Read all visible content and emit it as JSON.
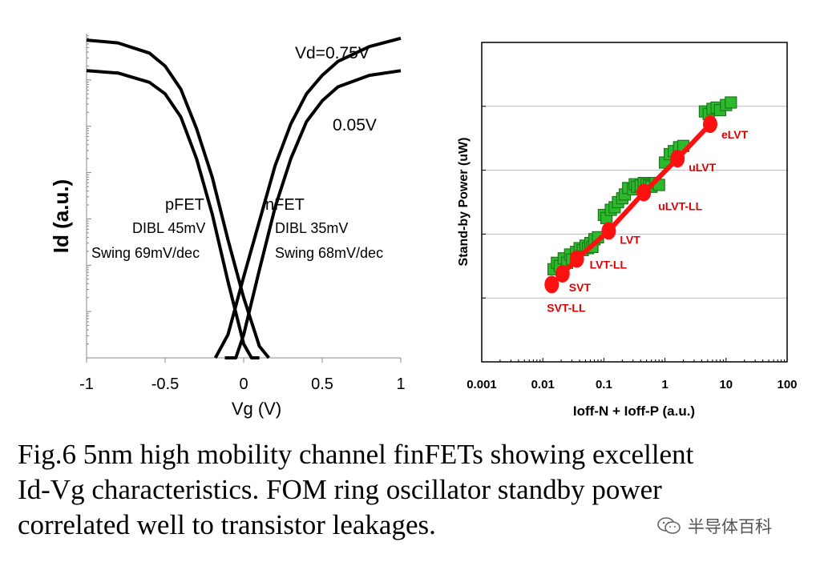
{
  "chart_data": [
    {
      "type": "line",
      "title": "",
      "xlabel": "Vg (V)",
      "ylabel": "Id (a.u.)",
      "x_scale": "linear",
      "y_scale": "log",
      "xlim": [
        -1,
        1
      ],
      "ylim_decades": [
        0,
        7
      ],
      "xticks": [
        -1,
        -0.5,
        0,
        0.5,
        1
      ],
      "xtick_labels": [
        "-1",
        "-0.5",
        "0",
        "0.5",
        "1"
      ],
      "grid": false,
      "annotations": {
        "vd_high": "Vd=0.75V",
        "vd_low": "0.05V",
        "pfet_name": "pFET",
        "pfet_dibl": "DIBL 45mV",
        "pfet_swing": "Swing 69mV/dec",
        "nfet_name": "nFET",
        "nfet_dibl": "DIBL 35mV",
        "nfet_swing": "Swing 68mV/dec"
      },
      "series": [
        {
          "device": "pFET",
          "vd": "0.75V",
          "x": [
            -1,
            -0.8,
            -0.6,
            -0.5,
            -0.4,
            -0.3,
            -0.2,
            -0.1,
            0,
            0.1,
            0.16
          ],
          "log10_id": [
            6.86,
            6.8,
            6.58,
            6.3,
            5.8,
            4.95,
            3.9,
            2.55,
            1.3,
            0.25,
            -0.45
          ]
        },
        {
          "device": "pFET",
          "vd": "0.05V",
          "x": [
            -1,
            -0.8,
            -0.6,
            -0.5,
            -0.4,
            -0.3,
            -0.2,
            -0.1,
            0,
            0.05,
            0.1
          ],
          "log10_id": [
            6.2,
            6.15,
            5.95,
            5.7,
            5.2,
            4.3,
            3.1,
            1.65,
            0.3,
            -0.4,
            -1.0
          ]
        },
        {
          "device": "nFET",
          "vd": "0.75V",
          "x": [
            -0.18,
            -0.1,
            0,
            0.1,
            0.2,
            0.3,
            0.4,
            0.5,
            0.6,
            0.8,
            1
          ],
          "log10_id": [
            -0.45,
            0.5,
            1.75,
            2.95,
            4.15,
            5.05,
            5.7,
            6.1,
            6.4,
            6.72,
            6.9
          ]
        },
        {
          "device": "nFET",
          "vd": "0.05V",
          "x": [
            -0.12,
            -0.05,
            0,
            0.1,
            0.2,
            0.3,
            0.4,
            0.5,
            0.6,
            0.8,
            1
          ],
          "log10_id": [
            -1.0,
            -0.2,
            0.5,
            1.9,
            3.25,
            4.3,
            5.1,
            5.55,
            5.85,
            6.1,
            6.2
          ]
        }
      ]
    },
    {
      "type": "scatter",
      "title": "",
      "xlabel": "Ioff-N +  Ioff-P (a.u.)",
      "ylabel": "Stand-by Power   (uW)",
      "x_scale": "log",
      "xlim": [
        0.001,
        100
      ],
      "xticks": [
        0.001,
        0.01,
        0.1,
        1,
        10,
        100
      ],
      "xtick_labels": [
        "0.001",
        "0.01",
        "0.1",
        "1",
        "10",
        "100"
      ],
      "y_scale": "log",
      "ylim_decades": [
        0,
        5
      ],
      "yticks_labeled": false,
      "grid": true,
      "colors": {
        "measured": "#2eb82e",
        "measured_edge": "#1a7a1a",
        "fit": "#ff1010",
        "labels": "#e00000"
      },
      "series": [
        {
          "name": "",
          "style": "red-line-markers",
          "points": [
            {
              "label": "SVT-LL",
              "x": 0.014,
              "y": 1.21
            },
            {
              "label": "SVT",
              "x": 0.021,
              "y": 1.38
            },
            {
              "label": "LVT-LL",
              "x": 0.036,
              "y": 1.61
            },
            {
              "label": "LVT",
              "x": 0.12,
              "y": 2.05
            },
            {
              "label": "uLVT-LL",
              "x": 0.45,
              "y": 2.65
            },
            {
              "label": "uLVT",
              "x": 1.6,
              "y": 3.18
            },
            {
              "label": "eLVT",
              "x": 5.5,
              "y": 3.72
            }
          ]
        },
        {
          "name": "",
          "style": "green-squares",
          "x": [
            0.015,
            0.017,
            0.019,
            0.022,
            0.025,
            0.028,
            0.03,
            0.035,
            0.04,
            0.045,
            0.05,
            0.055,
            0.06,
            0.065,
            0.07,
            0.08,
            0.1,
            0.11,
            0.13,
            0.15,
            0.17,
            0.2,
            0.22,
            0.25,
            0.3,
            0.32,
            0.35,
            0.4,
            0.45,
            0.5,
            0.55,
            0.6,
            0.7,
            0.8,
            1.0,
            1.2,
            1.4,
            1.7,
            2.0,
            4.5,
            5.2,
            6.0,
            7.0,
            8.0,
            10.0,
            12.0
          ],
          "y": [
            1.45,
            1.55,
            1.5,
            1.62,
            1.55,
            1.68,
            1.6,
            1.72,
            1.78,
            1.75,
            1.82,
            1.78,
            1.86,
            1.8,
            1.92,
            1.95,
            2.3,
            2.25,
            2.38,
            2.42,
            2.5,
            2.56,
            2.62,
            2.72,
            2.7,
            2.78,
            2.74,
            2.76,
            2.8,
            2.78,
            2.76,
            2.74,
            2.8,
            2.77,
            3.12,
            3.25,
            3.3,
            3.36,
            3.38,
            3.92,
            3.88,
            3.96,
            3.98,
            3.94,
            4.02,
            4.06
          ]
        }
      ]
    }
  ],
  "caption": {
    "line1": "Fig.6 5nm high mobility channel finFETs showing excellent",
    "line2": "Id-Vg characteristics.  FOM ring oscillator standby power",
    "line3": "correlated well to transistor leakages."
  },
  "watermark": {
    "text": "半导体百科",
    "icon": "wechat-icon"
  }
}
